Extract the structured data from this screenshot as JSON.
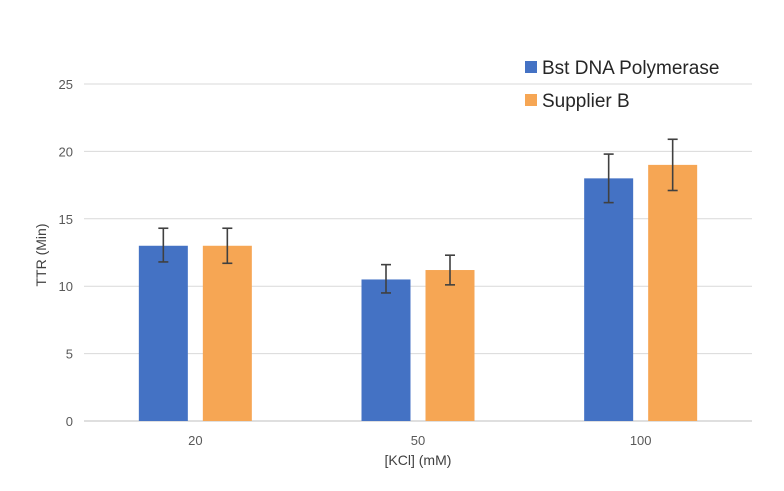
{
  "chart_data": {
    "type": "bar",
    "title": "",
    "xlabel": "[KCl] (mM)",
    "ylabel": "TTR (Min)",
    "ylim": [
      0,
      25
    ],
    "yticks": [
      0,
      5,
      10,
      15,
      20,
      25
    ],
    "grid": true,
    "legend_position": "top-right",
    "categories": [
      "20",
      "50",
      "100"
    ],
    "series": [
      {
        "name": "Bst DNA Polymerase",
        "color": "#4472c4",
        "values": [
          13.0,
          10.5,
          18.0
        ],
        "error_low": [
          11.8,
          9.5,
          16.2
        ],
        "error_high": [
          14.3,
          11.6,
          19.8
        ]
      },
      {
        "name": "Supplier B",
        "color": "#f6a654",
        "values": [
          13.0,
          11.2,
          19.0
        ],
        "error_low": [
          11.7,
          10.1,
          17.1
        ],
        "error_high": [
          14.3,
          12.3,
          20.9
        ]
      }
    ]
  }
}
